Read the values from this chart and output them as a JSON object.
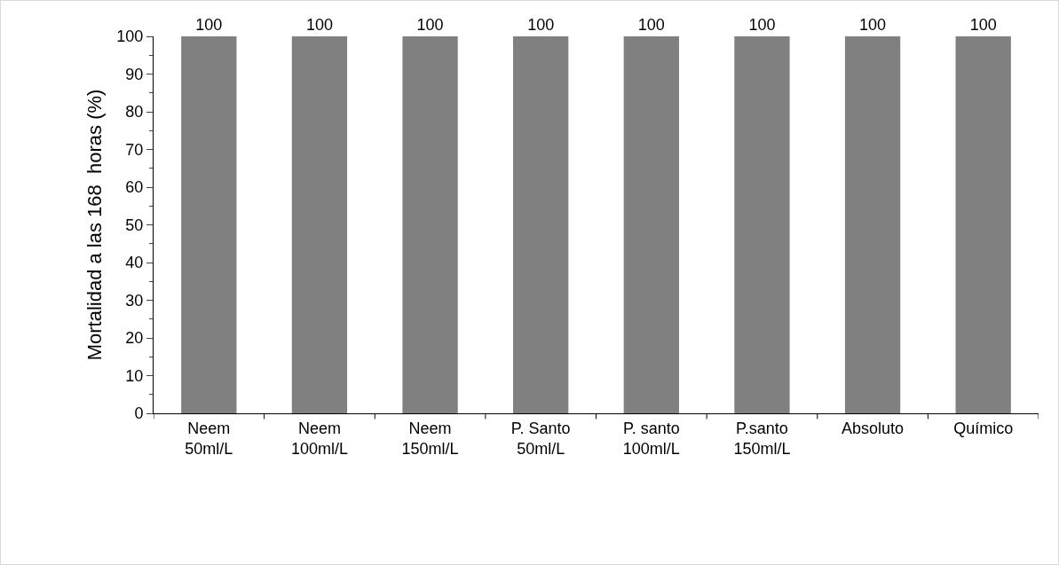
{
  "chart_data": {
    "type": "bar",
    "ylabel": "Mortalidad a las 168  horas (%)",
    "categories": [
      "Neem 50ml/L",
      "Neem 100ml/L",
      "Neem 150ml/L",
      "P. Santo 50ml/L",
      "P. santo 100ml/L",
      "P.santo 150ml/L",
      "Absoluto",
      "Químico"
    ],
    "values": [
      100,
      100,
      100,
      100,
      100,
      100,
      100,
      100
    ],
    "color": "#808080",
    "ylim": [
      0,
      100
    ],
    "yticks": [
      0,
      10,
      20,
      30,
      40,
      50,
      60,
      70,
      80,
      90,
      100
    ],
    "data_labels": true,
    "grid": false
  }
}
